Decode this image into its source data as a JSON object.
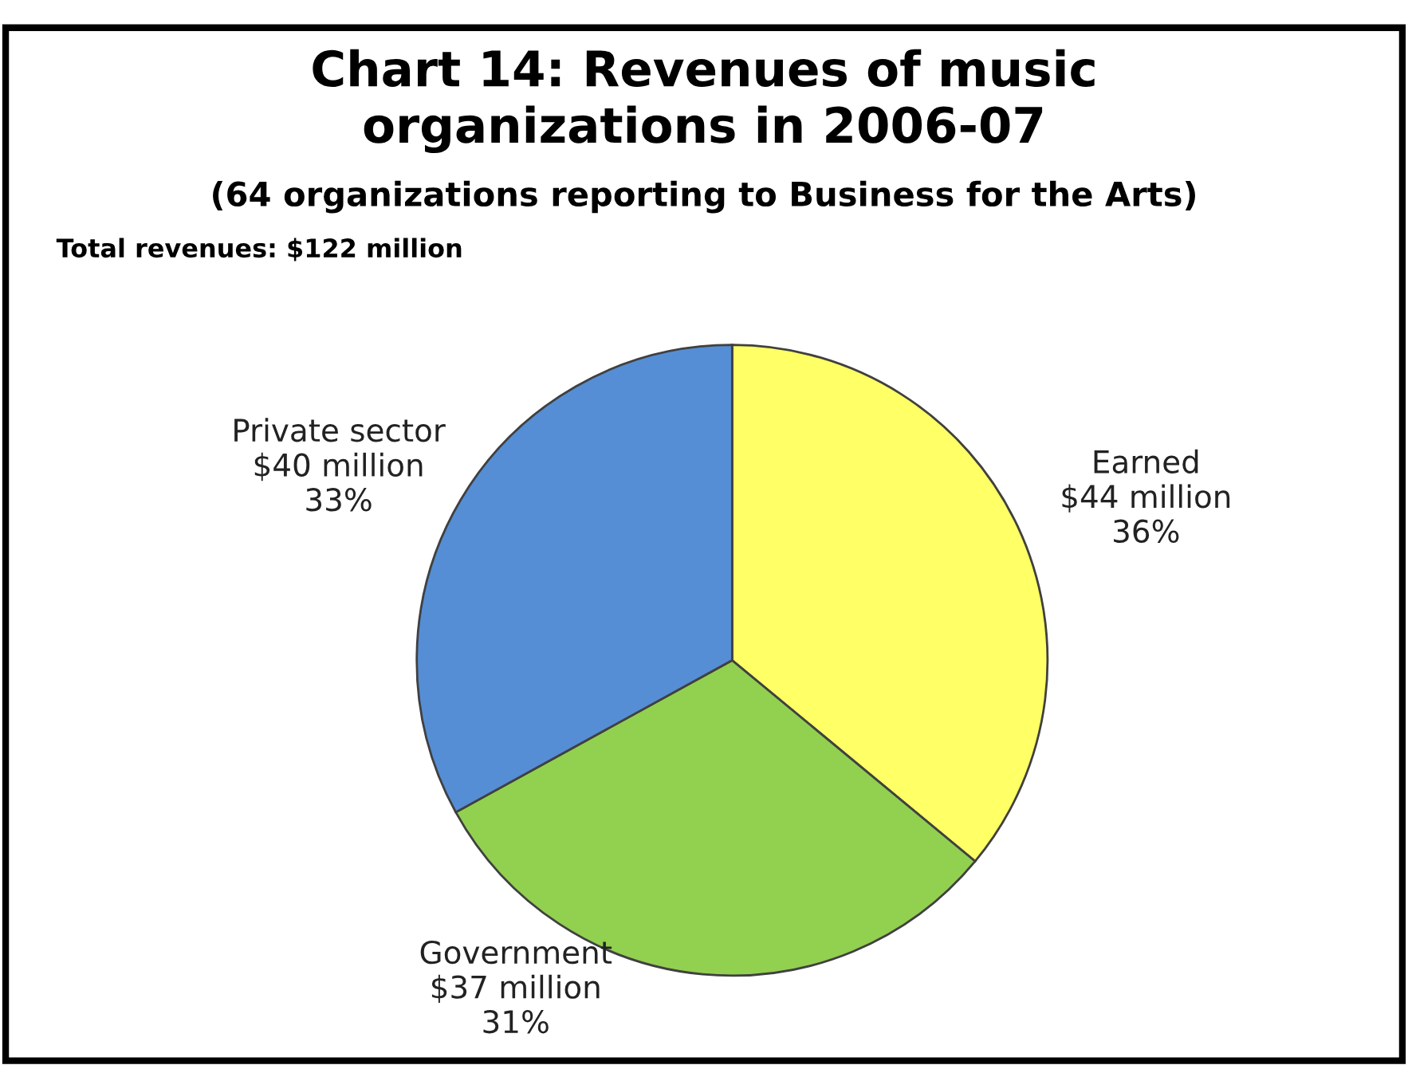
{
  "chart_data": {
    "type": "pie",
    "title": "Chart 14: Revenues of music\norganizations in 2006-07",
    "subtitle": "(64 organizations reporting to Business for the Arts)",
    "categories": [
      "Earned\n$44 million",
      "Government\n$37 million",
      "Private sector\n$40 million"
    ],
    "values": [
      36,
      31,
      33
    ],
    "value_labels": [
      "36%",
      "31%",
      "33%"
    ],
    "colors": [
      "#ffff66",
      "#92d050",
      "#558ed5"
    ],
    "annotations": [
      "Total revenues: $122 million"
    ],
    "legend": false
  }
}
